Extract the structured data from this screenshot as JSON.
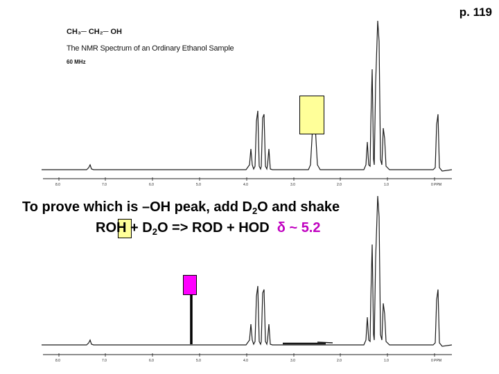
{
  "page_number": "p. 119",
  "top_spectrum": {
    "formula": "CH₃─ CH₂─ OH",
    "title": "The NMR Spectrum of an Ordinary Ethanol Sample",
    "frequency": "60 MHz",
    "axis_ticks": [
      "8.0",
      "7.0",
      "6.0",
      "5.0",
      "4.0",
      "3.0",
      "2.0",
      "1.0",
      "0 PPM"
    ]
  },
  "bottom_spectrum": {
    "axis_ticks": [
      "8.0",
      "7.0",
      "6.0",
      "5.0",
      "4.0",
      "3.0",
      "2.0",
      "1.0",
      "0 PPM"
    ]
  },
  "caption": {
    "line1_before": "To prove which is –OH peak, add D",
    "line1_sub": "2",
    "line1_after": "O and shake",
    "line2_a": "RO",
    "line2_h": "H",
    "line2_b": " + D",
    "line2_sub": "2",
    "line2_c": "O => ROD + HOD  ",
    "line2_delta": "δ ~ 5.2"
  },
  "colors": {
    "highlight_yellow": "#ffff99",
    "highlight_magenta": "#ff00ff",
    "delta_text": "#c000c0"
  }
}
